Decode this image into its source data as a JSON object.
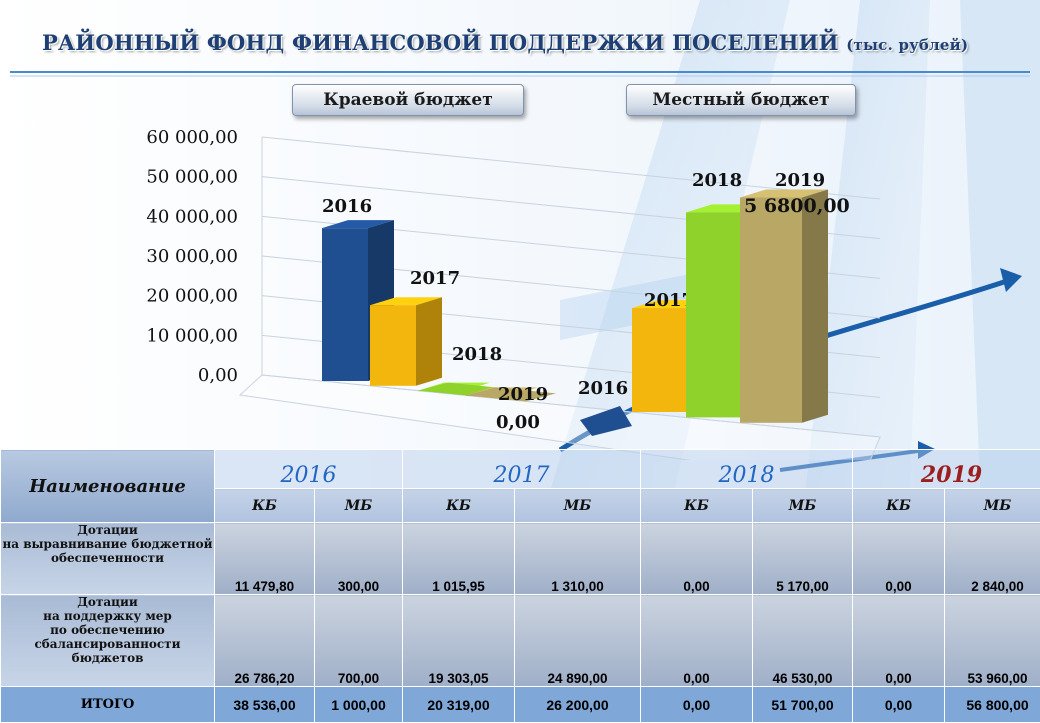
{
  "title": {
    "main": "РАЙОННЫЙ ФОНД ФИНАНСОВОЙ ПОДДЕРЖКИ ПОСЕЛЕНИЙ",
    "unit": "(тыс. рублей)"
  },
  "buttons": {
    "regional": "Краевой бюджет",
    "local": "Местный бюджет"
  },
  "colors": {
    "y2016": "#1f4f91",
    "y2017": "#f3b60d",
    "y2018": "#8fd22b",
    "y2019": "#b9a765",
    "title": "#1d3f73",
    "accent": "#2266c2"
  },
  "chart_data": {
    "type": "bar",
    "ylim": [
      0,
      60000
    ],
    "yticks": [
      "0,00",
      "10 000,00",
      "20 000,00",
      "30 000,00",
      "40 000,00",
      "50 000,00",
      "60 000,00"
    ],
    "groups": [
      {
        "name": "Краевой бюджет",
        "bars": [
          {
            "label": "2016",
            "value": 38536
          },
          {
            "label": "2017",
            "value": 20319
          },
          {
            "label": "2018",
            "value": 0
          },
          {
            "label": "2019",
            "value": 0
          }
        ],
        "value_label": "0,00"
      },
      {
        "name": "Местный бюджет",
        "bars": [
          {
            "label": "2016",
            "value": 1000
          },
          {
            "label": "2017",
            "value": 26200
          },
          {
            "label": "2018",
            "value": 51700
          },
          {
            "label": "2019",
            "value": 56800
          }
        ],
        "value_label": "5 6800,00"
      }
    ]
  },
  "table": {
    "name_header": "Наименование",
    "years": [
      "2016",
      "2017",
      "2018",
      "2019"
    ],
    "subheaders": [
      "КБ",
      "МБ",
      "КБ",
      "МБ",
      "КБ",
      "МБ",
      "КБ",
      "МБ"
    ],
    "rows": [
      {
        "label_lines": [
          "Дотации",
          "на выравнивание бюджетной",
          "обеспеченности"
        ],
        "values": [
          "11 479,80",
          "300,00",
          "1 015,95",
          "1 310,00",
          "0,00",
          "5 170,00",
          "0,00",
          "2 840,00"
        ]
      },
      {
        "label_lines": [
          "Дотации",
          "на поддержку мер",
          "по обеспечению",
          "сбалансированности бюджетов"
        ],
        "values": [
          "26 786,20",
          "700,00",
          "19 303,05",
          "24 890,00",
          "0,00",
          "46 530,00",
          "0,00",
          "53 960,00"
        ]
      }
    ],
    "total": {
      "label": "ИТОГО",
      "values": [
        "38 536,00",
        "1 000,00",
        "20 319,00",
        "26 200,00",
        "0,00",
        "51 700,00",
        "0,00",
        "56 800,00"
      ]
    }
  }
}
